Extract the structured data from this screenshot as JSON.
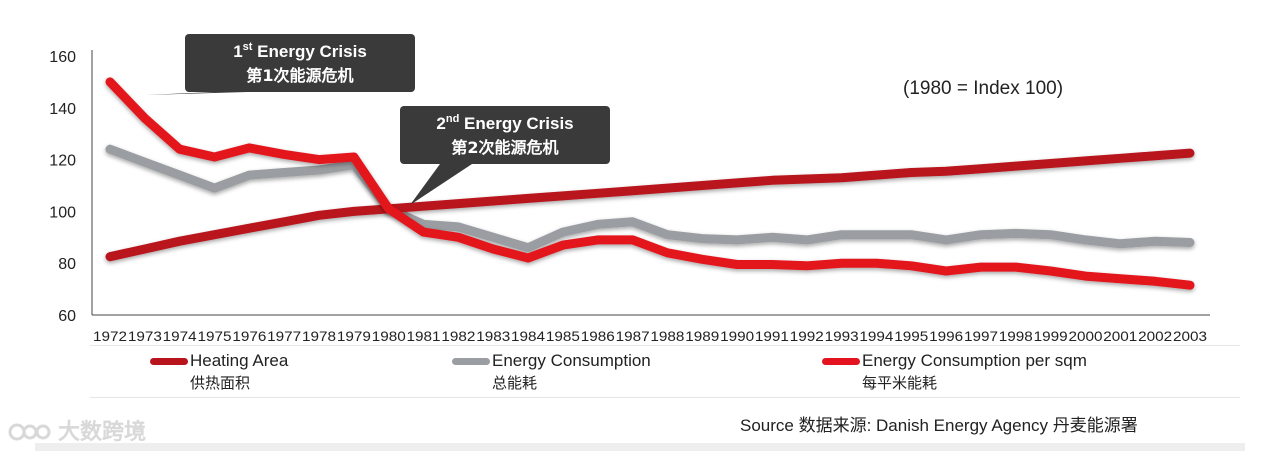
{
  "chart_data": {
    "type": "line",
    "title": "",
    "index_note": "(1980 = Index 100)",
    "xlabel": "",
    "ylabel": "",
    "ylim": [
      60,
      160
    ],
    "yticks": [
      60,
      80,
      100,
      120,
      140,
      160
    ],
    "categories": [
      "1972",
      "1973",
      "1974",
      "1975",
      "1976",
      "1977",
      "1978",
      "1979",
      "1980",
      "1981",
      "1982",
      "1983",
      "1984",
      "1985",
      "1986",
      "1987",
      "1988",
      "1989",
      "1990",
      "1991",
      "1992",
      "1993",
      "1994",
      "1995",
      "1996",
      "1997",
      "1998",
      "1999",
      "2000",
      "2001",
      "2002",
      "2003"
    ],
    "series": [
      {
        "name": "Heating Area",
        "name_zh": "供热面积",
        "color": "#b8141e",
        "values": [
          82.5,
          85.5,
          88.5,
          91,
          93.5,
          96,
          98.5,
          100,
          101,
          102,
          103,
          104,
          105,
          106,
          107,
          108,
          109,
          110,
          111,
          112,
          112.5,
          113,
          114,
          115,
          115.5,
          116.5,
          117.5,
          118.5,
          119.5,
          120.5,
          121.5,
          122.5
        ]
      },
      {
        "name": "Energy Consumption",
        "name_zh": "总能耗",
        "color": "#9a9da1",
        "values": [
          124,
          119,
          114,
          109,
          114,
          115,
          116,
          118,
          101,
          95,
          94,
          90,
          86,
          92,
          95,
          96,
          91,
          89.5,
          89,
          90,
          89,
          91,
          91,
          91,
          89,
          91,
          91.5,
          91,
          89,
          87.5,
          88.5,
          88
        ]
      },
      {
        "name": "Energy Consumption per sqm",
        "name_zh": "每平米能耗",
        "color": "#e3141f",
        "values": [
          150,
          136,
          124,
          121,
          124.5,
          122,
          120,
          121,
          101,
          92,
          90,
          85.5,
          82,
          87,
          89,
          89,
          84,
          81.5,
          79.5,
          79.5,
          79,
          80,
          80,
          79,
          77,
          78.5,
          78.5,
          77,
          75,
          74,
          73,
          71.5
        ]
      }
    ],
    "annotations": [
      {
        "sup_prefix": "1",
        "sup": "st",
        "text_en": " Energy Crisis",
        "text_zh": "第1次能源危机",
        "points_to": "1972"
      },
      {
        "sup_prefix": "2",
        "sup": "nd",
        "text_en": " Energy Crisis",
        "text_zh": "第2次能源危机",
        "points_to": "1980"
      }
    ],
    "grid": false,
    "legend_position": "bottom"
  },
  "source": "Source 数据来源: Danish Energy Agency  丹麦能源署",
  "watermark": "大数跨境"
}
